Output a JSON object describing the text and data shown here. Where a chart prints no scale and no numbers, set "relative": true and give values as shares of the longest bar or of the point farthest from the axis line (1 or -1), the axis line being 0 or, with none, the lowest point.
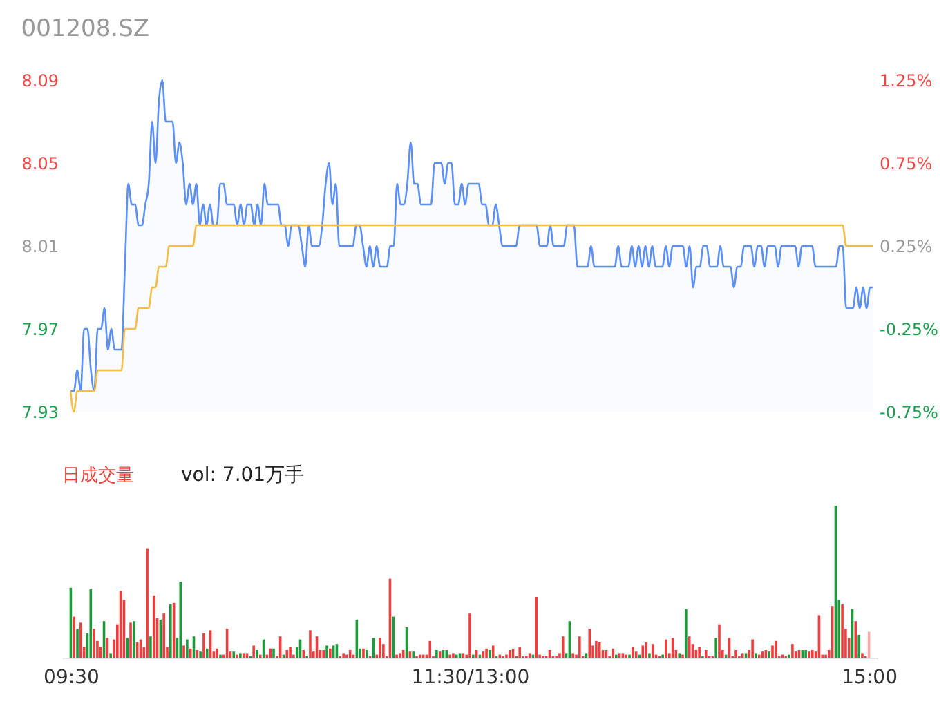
{
  "chart_data": [
    {
      "type": "line",
      "title": "001208.SZ",
      "ylim": [
        7.93,
        8.09
      ],
      "yticks": [
        7.93,
        7.97,
        8.01,
        8.05,
        8.09
      ],
      "y2lim": [
        -0.75,
        1.25
      ],
      "y2ticks": [
        {
          "value": -0.75,
          "label": "-0.75%"
        },
        {
          "value": -0.25,
          "label": "-0.25%"
        },
        {
          "value": 0.25,
          "label": "0.25%"
        },
        {
          "value": 0.75,
          "label": "0.75%"
        },
        {
          "value": 1.25,
          "label": "1.25%"
        }
      ],
      "tick_labels": "y",
      "categories": [
        null,
        null,
        null,
        null,
        null,
        null,
        null,
        null,
        null,
        null,
        null,
        null,
        null,
        null,
        null,
        null,
        null,
        null,
        null,
        null,
        null,
        null,
        null,
        null,
        null,
        null,
        null,
        null,
        null,
        null,
        null,
        null,
        null,
        null,
        null,
        null,
        null,
        null,
        null,
        null,
        null,
        null,
        null,
        null,
        null,
        null,
        null,
        null,
        null,
        null,
        null,
        null,
        null,
        null,
        null,
        null,
        null,
        null,
        null,
        null,
        null,
        null,
        null,
        null,
        null,
        null,
        null,
        null,
        null,
        null,
        null,
        null,
        null,
        null,
        null,
        null,
        null,
        null,
        null,
        null,
        null,
        null,
        null,
        null,
        null,
        null,
        null,
        null,
        null,
        null,
        null,
        null,
        null,
        null,
        null,
        null,
        null,
        null,
        null,
        null,
        null,
        null,
        null,
        null,
        null,
        null,
        null,
        null,
        null,
        null,
        null,
        null,
        null,
        null,
        null,
        null,
        null,
        null,
        null,
        null,
        null,
        null,
        null,
        null,
        null,
        null,
        null,
        null,
        null,
        null,
        null,
        null,
        null,
        null,
        null,
        null,
        null,
        null,
        null,
        null,
        null,
        null,
        null,
        null,
        null,
        null,
        null,
        null,
        null,
        null,
        null,
        null,
        null,
        null,
        null,
        null,
        null,
        null,
        null,
        null,
        null,
        null,
        null,
        null,
        null,
        null,
        null,
        null,
        null,
        null,
        null,
        null,
        null,
        null,
        null,
        null,
        null,
        null,
        null,
        null,
        null,
        null,
        null,
        null,
        null,
        null,
        null,
        null,
        null,
        null,
        null,
        null,
        null,
        null,
        null,
        null,
        null,
        null,
        null,
        null,
        null,
        null,
        null,
        null,
        null,
        null,
        null,
        null,
        null,
        null,
        null,
        null,
        null,
        null,
        null,
        null,
        null,
        null,
        null,
        null,
        null,
        null,
        null,
        null,
        null,
        null,
        null,
        null,
        null,
        null,
        null,
        null,
        null,
        null,
        null,
        null,
        null
      ],
      "series": [
        {
          "type": "area",
          "color": "#5b8ff9",
          "values": [
            7.94,
            7.94,
            7.95,
            7.94,
            7.97,
            7.97,
            7.95,
            7.94,
            7.97,
            7.97,
            7.98,
            7.96,
            7.97,
            7.96,
            7.96,
            7.96,
            8.0,
            8.04,
            8.03,
            8.03,
            8.02,
            8.02,
            8.03,
            8.04,
            8.07,
            8.05,
            8.08,
            8.09,
            8.07,
            8.07,
            8.07,
            8.05,
            8.06,
            8.05,
            8.03,
            8.04,
            8.03,
            8.04,
            8.02,
            8.03,
            8.02,
            8.03,
            8.02,
            8.02,
            8.04,
            8.04,
            8.03,
            8.03,
            8.03,
            8.02,
            8.03,
            8.02,
            8.03,
            8.03,
            8.02,
            8.03,
            8.02,
            8.04,
            8.03,
            8.03,
            8.03,
            8.03,
            8.02,
            8.02,
            8.01,
            8.02,
            8.02,
            8.02,
            8.01,
            8.0,
            8.02,
            8.01,
            8.01,
            8.01,
            8.02,
            8.04,
            8.05,
            8.03,
            8.04,
            8.01,
            8.01,
            8.01,
            8.01,
            8.01,
            8.02,
            8.02,
            8.01,
            8.0,
            8.01,
            8.0,
            8.01,
            8.0,
            8.0,
            8.0,
            8.01,
            8.01,
            8.04,
            8.03,
            8.03,
            8.04,
            8.06,
            8.04,
            8.04,
            8.03,
            8.03,
            8.03,
            8.03,
            8.05,
            8.05,
            8.05,
            8.04,
            8.05,
            8.05,
            8.03,
            8.03,
            8.04,
            8.03,
            8.04,
            8.04,
            8.04,
            8.04,
            8.03,
            8.03,
            8.02,
            8.02,
            8.03,
            8.02,
            8.01,
            8.01,
            8.01,
            8.01,
            8.01,
            8.02,
            8.02,
            8.02,
            8.02,
            8.02,
            8.02,
            8.01,
            8.01,
            8.01,
            8.02,
            8.01,
            8.01,
            8.01,
            8.01,
            8.02,
            8.02,
            8.02,
            8.0,
            8.0,
            8.0,
            8.0,
            8.01,
            8.0,
            8.0,
            8.0,
            8.0,
            8.0,
            8.0,
            8.0,
            8.01,
            8.0,
            8.0,
            8.0,
            8.01,
            8.0,
            8.01,
            8.0,
            8.01,
            8.0,
            8.01,
            8.0,
            8.0,
            8.0,
            8.01,
            8.0,
            8.01,
            8.01,
            8.01,
            8.01,
            8.0,
            8.01,
            7.99,
            8.0,
            8.0,
            8.01,
            8.01,
            8.0,
            8.0,
            8.0,
            8.01,
            8.0,
            8.0,
            8.0,
            7.99,
            8.0,
            8.0,
            8.01,
            8.01,
            8.01,
            8.0,
            8.01,
            8.01,
            8.0,
            8.01,
            8.01,
            8.01,
            8.0,
            8.01,
            8.01,
            8.01,
            8.01,
            8.01,
            8.0,
            8.01,
            8.01,
            8.01,
            8.01,
            8.0,
            8.0,
            8.0,
            8.0,
            8.0,
            8.0,
            8.0,
            8.01,
            8.01,
            7.98,
            7.98,
            7.98,
            7.99,
            7.98,
            7.99,
            7.98,
            7.99,
            7.99
          ]
        },
        {
          "type": "line",
          "color": "#f6bd45",
          "values": [
            7.94,
            7.93,
            7.94,
            7.94,
            7.94,
            7.94,
            7.94,
            7.94,
            7.95,
            7.95,
            7.95,
            7.95,
            7.95,
            7.95,
            7.95,
            7.95,
            7.97,
            7.97,
            7.97,
            7.97,
            7.98,
            7.98,
            7.98,
            7.98,
            7.99,
            7.99,
            8.0,
            8.0,
            8.0,
            8.01,
            8.01,
            8.01,
            8.01,
            8.01,
            8.01,
            8.01,
            8.01,
            8.02,
            8.02,
            8.02,
            8.02,
            8.02,
            8.02,
            8.02,
            8.02,
            8.02,
            8.02,
            8.02,
            8.02,
            8.02,
            8.02,
            8.02,
            8.02,
            8.02,
            8.02,
            8.02,
            8.02,
            8.02,
            8.02,
            8.02,
            8.02,
            8.02,
            8.02,
            8.02,
            8.02,
            8.02,
            8.02,
            8.02,
            8.02,
            8.02,
            8.02,
            8.02,
            8.02,
            8.02,
            8.02,
            8.02,
            8.02,
            8.02,
            8.02,
            8.02,
            8.02,
            8.02,
            8.02,
            8.02,
            8.02,
            8.02,
            8.02,
            8.02,
            8.02,
            8.02,
            8.02,
            8.02,
            8.02,
            8.02,
            8.02,
            8.02,
            8.02,
            8.02,
            8.02,
            8.02,
            8.02,
            8.02,
            8.02,
            8.02,
            8.02,
            8.02,
            8.02,
            8.02,
            8.02,
            8.02,
            8.02,
            8.02,
            8.02,
            8.02,
            8.02,
            8.02,
            8.02,
            8.02,
            8.02,
            8.02,
            8.02,
            8.02,
            8.02,
            8.02,
            8.02,
            8.02,
            8.02,
            8.02,
            8.02,
            8.02,
            8.02,
            8.02,
            8.02,
            8.02,
            8.02,
            8.02,
            8.02,
            8.02,
            8.02,
            8.02,
            8.02,
            8.02,
            8.02,
            8.02,
            8.02,
            8.02,
            8.02,
            8.02,
            8.02,
            8.02,
            8.02,
            8.02,
            8.02,
            8.02,
            8.02,
            8.02,
            8.02,
            8.02,
            8.02,
            8.02,
            8.02,
            8.02,
            8.02,
            8.02,
            8.02,
            8.02,
            8.02,
            8.02,
            8.02,
            8.02,
            8.02,
            8.02,
            8.02,
            8.02,
            8.02,
            8.02,
            8.02,
            8.02,
            8.02,
            8.02,
            8.02,
            8.02,
            8.02,
            8.02,
            8.02,
            8.02,
            8.02,
            8.02,
            8.02,
            8.02,
            8.02,
            8.02,
            8.02,
            8.02,
            8.02,
            8.02,
            8.02,
            8.02,
            8.02,
            8.02,
            8.02,
            8.02,
            8.02,
            8.02,
            8.02,
            8.02,
            8.02,
            8.02,
            8.02,
            8.02,
            8.02,
            8.02,
            8.02,
            8.02,
            8.02,
            8.02,
            8.02,
            8.02,
            8.02,
            8.02,
            8.02,
            8.02,
            8.02,
            8.02,
            8.02,
            8.02,
            8.02,
            8.02,
            8.01,
            8.01,
            8.01,
            8.01,
            8.01,
            8.01,
            8.01,
            8.01,
            8.01
          ]
        }
      ]
    },
    {
      "type": "bar",
      "title": "日成交量",
      "annotations": [
        "vol: 7.01万手"
      ],
      "relative": true,
      "categories": [
        "09:30",
        null,
        null,
        null,
        null,
        null,
        null,
        null,
        null,
        null,
        null,
        null,
        null,
        null,
        null,
        null,
        null,
        null,
        null,
        null,
        null,
        null,
        null,
        null,
        null,
        null,
        null,
        null,
        null,
        null,
        null,
        null,
        null,
        null,
        null,
        null,
        null,
        null,
        null,
        null,
        null,
        null,
        null,
        null,
        null,
        null,
        null,
        null,
        null,
        null,
        null,
        null,
        null,
        null,
        null,
        null,
        null,
        null,
        null,
        null,
        null,
        null,
        null,
        null,
        null,
        null,
        null,
        null,
        null,
        null,
        null,
        null,
        null,
        null,
        null,
        null,
        null,
        null,
        null,
        null,
        null,
        null,
        null,
        null,
        null,
        null,
        null,
        null,
        null,
        null,
        null,
        null,
        null,
        null,
        null,
        null,
        null,
        null,
        null,
        null,
        null,
        null,
        null,
        null,
        null,
        null,
        null,
        null,
        null,
        null,
        null,
        null,
        null,
        null,
        null,
        null,
        null,
        null,
        null,
        null,
        "11:30/13:00",
        null,
        null,
        null,
        null,
        null,
        null,
        null,
        null,
        null,
        null,
        null,
        null,
        null,
        null,
        null,
        null,
        null,
        null,
        null,
        null,
        null,
        null,
        null,
        null,
        null,
        null,
        null,
        null,
        null,
        null,
        null,
        null,
        null,
        null,
        null,
        null,
        null,
        null,
        null,
        null,
        null,
        null,
        null,
        null,
        null,
        null,
        null,
        null,
        null,
        null,
        null,
        null,
        null,
        null,
        null,
        null,
        null,
        null,
        null,
        null,
        null,
        null,
        null,
        null,
        null,
        null,
        null,
        null,
        null,
        null,
        null,
        null,
        null,
        null,
        null,
        null,
        null,
        null,
        null,
        null,
        null,
        null,
        null,
        null,
        null,
        null,
        null,
        null,
        null,
        null,
        null,
        null,
        null,
        null,
        null,
        null,
        null,
        null,
        null,
        null,
        null,
        null,
        null,
        null,
        null,
        null,
        null,
        null,
        null,
        null,
        null,
        null,
        null,
        null,
        null,
        null,
        null,
        null,
        null,
        "15:00"
      ],
      "values": [
        0.46,
        0.27,
        0.19,
        0.23,
        0.07,
        0.16,
        0.45,
        0.19,
        0.11,
        0.07,
        0.24,
        0.13,
        0.03,
        0.12,
        0.22,
        0.44,
        0.38,
        0.13,
        0.23,
        0.24,
        0.1,
        0.12,
        0.07,
        0.72,
        0.14,
        0.41,
        0.26,
        0.25,
        0.29,
        0.07,
        0.35,
        0.36,
        0.13,
        0.5,
        0.08,
        0.12,
        0.06,
        0.14,
        0.05,
        0.04,
        0.16,
        0.06,
        0.18,
        0.04,
        0.06,
        0.02,
        0.02,
        0.19,
        0.04,
        0.04,
        0.02,
        0.03,
        0.03,
        0.03,
        0.01,
        0.08,
        0.05,
        0.02,
        0.12,
        0.02,
        0.06,
        0.06,
        0.01,
        0.14,
        0.02,
        0.05,
        0.07,
        0.02,
        0.07,
        0.12,
        0.05,
        0.01,
        0.18,
        0.04,
        0.14,
        0.05,
        0.05,
        0.08,
        0.06,
        0.08,
        0.09,
        0.01,
        0.03,
        0.02,
        0.05,
        0.02,
        0.25,
        0.06,
        0.06,
        0.05,
        0.01,
        0.13,
        0.02,
        0.13,
        0.09,
        0.01,
        0.52,
        0.27,
        0.02,
        0.03,
        0.05,
        0.2,
        0.04,
        0.04,
        0.01,
        0.02,
        0.02,
        0.02,
        0.11,
        0.01,
        0.05,
        0.04,
        0.05,
        0.05,
        0.02,
        0.03,
        0.02,
        0.03,
        0.03,
        0.02,
        0.29,
        0.02,
        0.05,
        0.02,
        0.04,
        0.06,
        0.05,
        0.08,
        0.01,
        0.02,
        0.01,
        0.02,
        0.05,
        0.06,
        0.01,
        0.07,
        0.01,
        0.01,
        0.03,
        0.02,
        0.4,
        0.02,
        0.01,
        0.01,
        0.05,
        0.01,
        0.01,
        0.03,
        0.14,
        0.03,
        0.24,
        0.03,
        0.02,
        0.14,
        0.01,
        0.03,
        0.19,
        0.08,
        0.11,
        0.1,
        0.05,
        0.05,
        0.01,
        0.06,
        0.02,
        0.03,
        0.03,
        0.02,
        0.02,
        0.07,
        0.04,
        0.02,
        0.08,
        0.1,
        0.03,
        0.09,
        0.02,
        0.01,
        0.02,
        0.12,
        0.03,
        0.13,
        0.05,
        0.03,
        0.02,
        0.32,
        0.14,
        0.09,
        0.05,
        0.07,
        0.01,
        0.05,
        0.01,
        0.01,
        0.13,
        0.22,
        0.05,
        0.02,
        0.13,
        0.01,
        0.05,
        0.01,
        0.03,
        0.03,
        0.05,
        0.12,
        0.03,
        0.02,
        0.04,
        0.05,
        0.04,
        0.08,
        0.11,
        0.01,
        0.02,
        0.01,
        0.02,
        0.09,
        0.04,
        0.05,
        0.05,
        0.05,
        0.04,
        0.05,
        0.04,
        0.28,
        0.02,
        0.02,
        0.05,
        0.34,
        1,
        0.38,
        0.35,
        0.19,
        0.13,
        0.32,
        0.24,
        0.15,
        0.03,
        0.01,
        0.17
      ],
      "colors": [
        "#1c9b3a",
        "#f03c3c",
        "#1c9b3a",
        "#f03c3c",
        "#f03c3c",
        "#1c9b3a",
        "#1c9b3a",
        "#f03c3c",
        "#f03c3c",
        "#f03c3c",
        "#1c9b3a",
        "#f03c3c",
        "#1c9b3a",
        "#f03c3c",
        "#f03c3c",
        "#f03c3c",
        "#f03c3c",
        "#1c9b3a",
        "#f03c3c",
        "#1c9b3a",
        "#f03c3c",
        "#f03c3c",
        "#f03c3c",
        "#f03c3c",
        "#1c9b3a",
        "#f03c3c",
        "#f03c3c",
        "#1c9b3a",
        "#f03c3c",
        "#f03c3c",
        "#1c9b3a",
        "#f03c3c",
        "#1c9b3a",
        "#1c9b3a",
        "#f03c3c",
        "#1c9b3a",
        "#f03c3c",
        "#1c9b3a",
        "#f03c3c",
        "#1c9b3a",
        "#f03c3c",
        "#1c9b3a",
        "#f03c3c",
        "#f03c3c",
        "#f03c3c",
        "#1c9b3a",
        "#f03c3c",
        "#f03c3c",
        "#f03c3c",
        "#1c9b3a",
        "#f03c3c",
        "#1c9b3a",
        "#f03c3c",
        "#f03c3c",
        "#1c9b3a",
        "#f03c3c",
        "#1c9b3a",
        "#f03c3c",
        "#1c9b3a",
        "#f03c3c",
        "#f03c3c",
        "#1c9b3a",
        "#f03c3c",
        "#f03c3c",
        "#1c9b3a",
        "#f03c3c",
        "#f03c3c",
        "#f03c3c",
        "#1c9b3a",
        "#1c9b3a",
        "#f03c3c",
        "#1c9b3a",
        "#f03c3c",
        "#f03c3c",
        "#f03c3c",
        "#f03c3c",
        "#f03c3c",
        "#1c9b3a",
        "#f03c3c",
        "#1c9b3a",
        "#1c9b3a",
        "#f03c3c",
        "#f03c3c",
        "#f03c3c",
        "#f03c3c",
        "#f03c3c",
        "#1c9b3a",
        "#1c9b3a",
        "#f03c3c",
        "#1c9b3a",
        "#f03c3c",
        "#1c9b3a",
        "#f03c3c",
        "#f03c3c",
        "#f03c3c",
        "#f03c3c",
        "#f03c3c",
        "#1c9b3a",
        "#f03c3c",
        "#f03c3c",
        "#f03c3c",
        "#1c9b3a",
        "#f03c3c",
        "#1c9b3a",
        "#f03c3c",
        "#f03c3c",
        "#f03c3c",
        "#f03c3c",
        "#f03c3c",
        "#f03c3c",
        "#1c9b3a",
        "#f03c3c",
        "#1c9b3a",
        "#1c9b3a",
        "#f03c3c",
        "#f03c3c",
        "#1c9b3a",
        "#1c9b3a",
        "#f03c3c",
        "#f03c3c",
        "#f03c3c",
        "#1c9b3a",
        "#f03c3c",
        "#1c9b3a",
        "#f03c3c",
        "#f03c3c",
        "#1c9b3a",
        "#f03c3c",
        "#1c9b3a",
        "#f03c3c",
        "#f03c3c",
        "#f03c3c",
        "#f03c3c",
        "#f03c3c",
        "#f03c3c",
        "#f03c3c",
        "#f03c3c",
        "#f03c3c",
        "#f03c3c",
        "#1c9b3a",
        "#f03c3c",
        "#f03c3c",
        "#f03c3c",
        "#f03c3c",
        "#f03c3c",
        "#f03c3c",
        "#f03c3c",
        "#f03c3c",
        "#f03c3c",
        "#1c9b3a",
        "#1c9b3a",
        "#f03c3c",
        "#f03c3c",
        "#f03c3c",
        "#f03c3c",
        "#1c9b3a",
        "#f03c3c",
        "#f03c3c",
        "#f03c3c",
        "#f03c3c",
        "#f03c3c",
        "#f03c3c",
        "#f03c3c",
        "#f03c3c",
        "#1c9b3a",
        "#f03c3c",
        "#f03c3c",
        "#f03c3c",
        "#1c9b3a",
        "#f03c3c",
        "#f03c3c",
        "#1c9b3a",
        "#f03c3c",
        "#f03c3c",
        "#1c9b3a",
        "#f03c3c",
        "#f03c3c",
        "#f03c3c",
        "#1c9b3a",
        "#f03c3c",
        "#f03c3c",
        "#f03c3c",
        "#f03c3c",
        "#1c9b3a",
        "#f03c3c",
        "#1c9b3a",
        "#f03c3c",
        "#f03c3c",
        "#f03c3c",
        "#f03c3c",
        "#1c9b3a",
        "#f03c3c",
        "#f03c3c",
        "#f03c3c",
        "#1c9b3a",
        "#f03c3c",
        "#f03c3c",
        "#1c9b3a",
        "#f03c3c",
        "#f03c3c",
        "#f03c3c",
        "#f03c3c",
        "#f03c3c",
        "#1c9b3a",
        "#f03c3c",
        "#f03c3c",
        "#1c9b3a",
        "#f03c3c",
        "#f03c3c",
        "#f03c3c",
        "#1c9b3a",
        "#f03c3c",
        "#f03c3c",
        "#f03c3c",
        "#f03c3c",
        "#f03c3c",
        "#1c9b3a",
        "#f03c3c",
        "#f03c3c",
        "#f03c3c",
        "#1c9b3a",
        "#1c9b3a",
        "#f03c3c",
        "#f03c3c",
        "#f03c3c",
        "#f03c3c",
        "#f03c3c",
        "#f03c3c",
        "#f03c3c",
        "#f03c3c",
        "#1c9b3a",
        "#1c9b3a",
        "#f03c3c",
        "#f03c3c",
        "#f03c3c",
        "#1c9b3a",
        "#f03c3c",
        "#1c9b3a",
        "#f03c3c",
        "#f03c3c",
        "#f7a5a5"
      ]
    }
  ]
}
